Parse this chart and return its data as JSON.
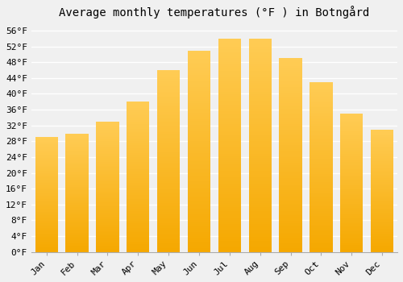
{
  "title": "Average monthly temperatures (°F ) in Botngård",
  "months": [
    "Jan",
    "Feb",
    "Mar",
    "Apr",
    "May",
    "Jun",
    "Jul",
    "Aug",
    "Sep",
    "Oct",
    "Nov",
    "Dec"
  ],
  "values": [
    29,
    30,
    33,
    38,
    46,
    51,
    54,
    54,
    49,
    43,
    35,
    31
  ],
  "bar_color_bottom": "#F5A800",
  "bar_color_top": "#FFCC55",
  "ylim": [
    0,
    58
  ],
  "yticks": [
    0,
    4,
    8,
    12,
    16,
    20,
    24,
    28,
    32,
    36,
    40,
    44,
    48,
    52,
    56
  ],
  "ytick_labels": [
    "0°F",
    "4°F",
    "8°F",
    "12°F",
    "16°F",
    "20°F",
    "24°F",
    "28°F",
    "32°F",
    "36°F",
    "40°F",
    "44°F",
    "48°F",
    "52°F",
    "56°F"
  ],
  "background_color": "#f0f0f0",
  "grid_color": "#ffffff",
  "title_fontsize": 10,
  "tick_fontsize": 8,
  "bar_width": 0.75,
  "figsize": [
    5.0,
    3.5
  ],
  "dpi": 100
}
